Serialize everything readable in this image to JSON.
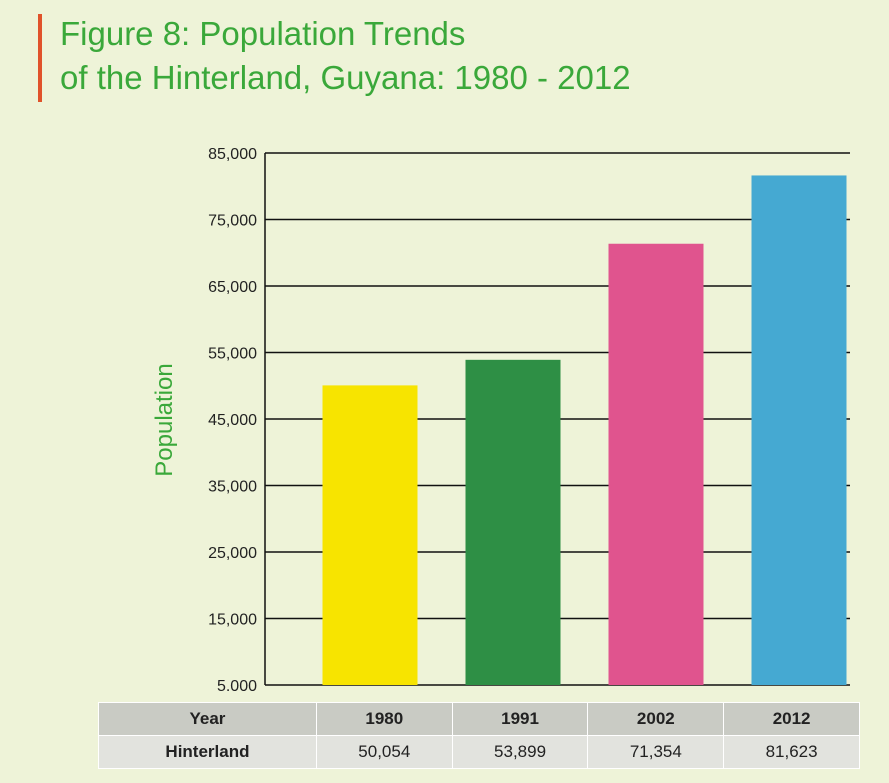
{
  "title_lines": [
    "Figure 8: Population Trends",
    "of the Hinterland, Guyana: 1980 - 2012"
  ],
  "table": {
    "header_label": "Year",
    "row_label": "Hinterland",
    "years": [
      "1980",
      "1991",
      "2002",
      "2012"
    ],
    "values": [
      "50,054",
      "53,899",
      "71,354",
      "81,623"
    ]
  },
  "chart_data": {
    "type": "bar",
    "title": "Figure 8: Population Trends of the Hinterland, Guyana: 1980 - 2012",
    "xlabel": "",
    "ylabel": "Population",
    "categories": [
      "1980",
      "1991",
      "2002",
      "2012"
    ],
    "values": [
      50054,
      53899,
      71354,
      81623
    ],
    "ylim": [
      5000,
      85000
    ],
    "yticks": [
      5000,
      15000,
      25000,
      35000,
      45000,
      55000,
      65000,
      75000,
      85000
    ],
    "ytick_labels": [
      "5.000",
      "15,000",
      "25,000",
      "35,000",
      "45,000",
      "55,000",
      "65,000",
      "75,000",
      "85,000"
    ],
    "grid": true,
    "legend": "none",
    "colors": [
      "#f7e400",
      "#2e8f45",
      "#e0548e",
      "#45a9d2"
    ]
  }
}
